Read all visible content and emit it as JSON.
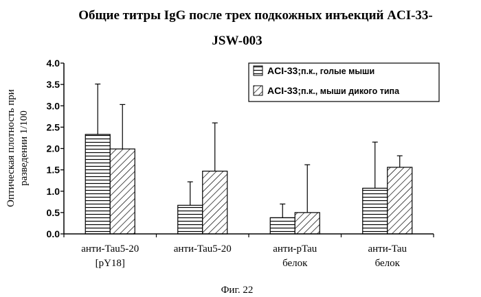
{
  "chart_data": {
    "type": "bar",
    "title_lines": [
      "Общие титры IgG после трех подкожных инъекций ACI-33-",
      "JSW-003"
    ],
    "ylabel_lines": [
      "Оптическая плотность при",
      "разведении 1/100"
    ],
    "xlabel": "",
    "ylim": [
      0,
      4.0
    ],
    "yticks": [
      "0.0",
      "0.5",
      "1.0",
      "1.5",
      "2.0",
      "2.5",
      "3.0",
      "3.5",
      "4.0"
    ],
    "categories": [
      [
        "анти-Tau5-20",
        "[pY18]"
      ],
      [
        "анти-Tau5-20"
      ],
      [
        "анти-pTau",
        "белок"
      ],
      [
        "анти-Tau",
        "белок"
      ]
    ],
    "series": [
      {
        "name": "ACI-33;",
        "note": "п.к., голые мыши",
        "pattern": "horizontal",
        "values": [
          2.33,
          0.67,
          0.38,
          1.07
        ],
        "errors": [
          1.18,
          0.55,
          0.32,
          1.08
        ]
      },
      {
        "name": "ACI-33;",
        "note": "п.к., мыши дикого типа",
        "pattern": "diagonal",
        "values": [
          1.99,
          1.47,
          0.5,
          1.56
        ],
        "errors": [
          1.04,
          1.13,
          1.12,
          0.27
        ]
      }
    ],
    "grid": false,
    "legend_position": "top-right"
  },
  "caption": "Фиг. 22"
}
